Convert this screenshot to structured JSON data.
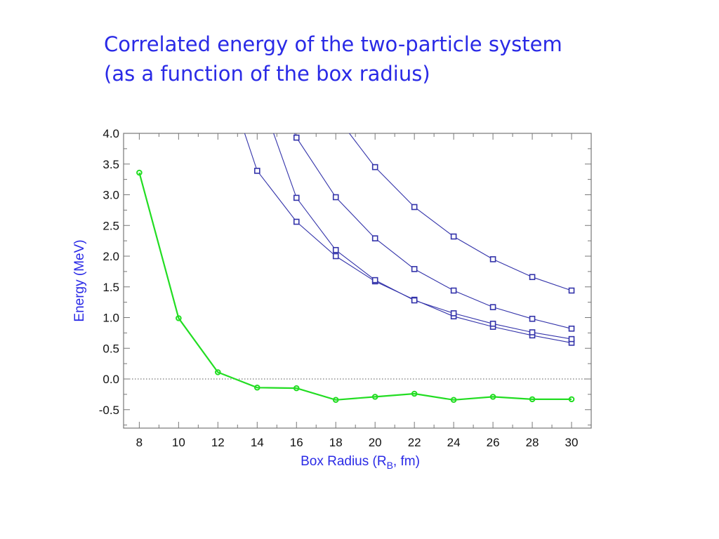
{
  "slide": {
    "title_line1": "Correlated energy of the two-particle system",
    "title_line2": "(as a function of the box radius)"
  },
  "chart_data": {
    "type": "line",
    "xlabel": "Box Radius (R",
    "xlabel_sub": "B",
    "xlabel_tail": ", fm)",
    "ylabel": "Energy (MeV)",
    "xlim": [
      7.2,
      31.0
    ],
    "ylim": [
      -0.8,
      4.0
    ],
    "x_ticks": [
      8,
      10,
      12,
      14,
      16,
      18,
      20,
      22,
      24,
      26,
      28,
      30
    ],
    "y_ticks": [
      -0.5,
      0.0,
      0.5,
      1.0,
      1.5,
      2.0,
      2.5,
      3.0,
      3.5,
      4.0
    ],
    "y_tick_labels": [
      "-0.5",
      "0.0",
      "0.5",
      "1.0",
      "1.5",
      "2.0",
      "2.5",
      "3.0",
      "3.5",
      "4.0"
    ],
    "zero_line": true,
    "colors": {
      "correlated": "#22dd22",
      "levels": "#3333aa",
      "axis_text": "#2a2ae6"
    },
    "series": [
      {
        "marker": "circle",
        "color": "#22dd22",
        "x": [
          8,
          10,
          12,
          14,
          16,
          18,
          20,
          22,
          24,
          26,
          28,
          30
        ],
        "y": [
          3.36,
          0.99,
          0.11,
          -0.14,
          -0.15,
          -0.34,
          -0.29,
          -0.24,
          -0.34,
          -0.29,
          -0.33,
          -0.33
        ]
      },
      {
        "marker": "square",
        "color": "#3333aa",
        "x": [
          13.1,
          14,
          16,
          18,
          20,
          22,
          24,
          26,
          28,
          30
        ],
        "y": [
          4.25,
          3.39,
          2.56,
          2.0,
          1.59,
          1.29,
          1.02,
          0.85,
          0.71,
          0.59
        ]
      },
      {
        "marker": "square",
        "color": "#3333aa",
        "x": [
          14.5,
          16,
          18,
          20,
          22,
          24,
          26,
          28,
          30
        ],
        "y": [
          4.3,
          2.95,
          2.1,
          1.61,
          1.28,
          1.07,
          0.9,
          0.76,
          0.65
        ]
      },
      {
        "marker": "square",
        "color": "#3333aa",
        "x": [
          15.8,
          16,
          18,
          20,
          22,
          24,
          26,
          28,
          30
        ],
        "y": [
          4.08,
          3.93,
          2.96,
          2.29,
          1.79,
          1.44,
          1.17,
          0.98,
          0.82
        ]
      },
      {
        "marker": "square",
        "color": "#3333aa",
        "x": [
          18.5,
          20,
          22,
          24,
          26,
          28,
          30
        ],
        "y": [
          4.08,
          3.45,
          2.8,
          2.32,
          1.95,
          1.66,
          1.44
        ]
      }
    ]
  }
}
